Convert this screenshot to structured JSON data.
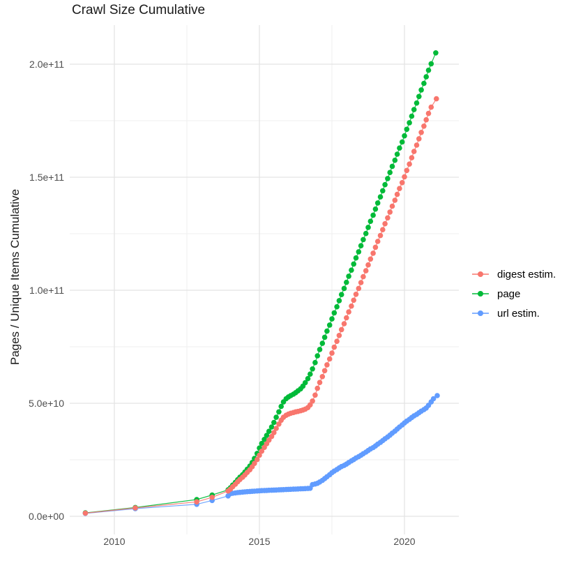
{
  "title": "Crawl Size Cumulative",
  "chart_data": {
    "type": "scatter",
    "title": "Crawl Size Cumulative",
    "xlabel": "",
    "ylabel": "Pages / Unique Items Cumulative",
    "value_unit": "1e9 (billions of pages / unique items)",
    "x_axis": {
      "ticks": [
        2010,
        2015,
        2020
      ],
      "tick_labels": [
        "2010",
        "2015",
        "2020"
      ],
      "minor_ticks": [
        2012.5,
        2017.5
      ],
      "range": [
        2008.45,
        2021.9
      ]
    },
    "y_axis": {
      "ticks_e9": [
        0,
        50,
        100,
        150,
        200
      ],
      "tick_labels": [
        "0.0e+00",
        "5.0e+10",
        "1.0e+11",
        "1.5e+11",
        "2.0e+11"
      ],
      "minor_ticks_e9": [
        25,
        75,
        125,
        175
      ],
      "range_e9": [
        -8,
        217
      ]
    },
    "layout": {
      "grid": true,
      "grid_major_color": "#e3e3e3",
      "grid_minor_color": "#efefef",
      "background": "#ffffff",
      "legend_position": "right"
    },
    "series": [
      {
        "name": "digest estim.",
        "color": "#F8766D",
        "points": [
          [
            2009.0,
            1.4
          ],
          [
            2010.72,
            3.7
          ],
          [
            2012.84,
            6.4
          ],
          [
            2013.37,
            8.4
          ],
          [
            2013.92,
            11.2
          ],
          [
            2014.0,
            12.0
          ],
          [
            2014.08,
            13.1
          ],
          [
            2014.17,
            14.2
          ],
          [
            2014.25,
            15.3
          ],
          [
            2014.33,
            16.3
          ],
          [
            2014.42,
            17.3
          ],
          [
            2014.5,
            18.3
          ],
          [
            2014.58,
            19.4
          ],
          [
            2014.67,
            20.6
          ],
          [
            2014.75,
            21.9
          ],
          [
            2014.83,
            23.4
          ],
          [
            2014.92,
            25.1
          ],
          [
            2015.0,
            27.0
          ],
          [
            2015.08,
            28.8
          ],
          [
            2015.17,
            30.5
          ],
          [
            2015.25,
            32.1
          ],
          [
            2015.33,
            33.7
          ],
          [
            2015.42,
            35.3
          ],
          [
            2015.5,
            37.0
          ],
          [
            2015.58,
            38.9
          ],
          [
            2015.67,
            40.8
          ],
          [
            2015.75,
            42.5
          ],
          [
            2015.83,
            43.8
          ],
          [
            2015.92,
            44.7
          ],
          [
            2016.0,
            45.2
          ],
          [
            2016.08,
            45.6
          ],
          [
            2016.17,
            45.9
          ],
          [
            2016.25,
            46.2
          ],
          [
            2016.33,
            46.4
          ],
          [
            2016.42,
            46.7
          ],
          [
            2016.5,
            47.0
          ],
          [
            2016.58,
            47.4
          ],
          [
            2016.67,
            48.1
          ],
          [
            2016.75,
            49.3
          ],
          [
            2016.83,
            51.0
          ],
          [
            2016.92,
            53.6
          ],
          [
            2017.0,
            56.6
          ],
          [
            2017.08,
            59.2
          ],
          [
            2017.17,
            61.8
          ],
          [
            2017.25,
            64.4
          ],
          [
            2017.33,
            67.0
          ],
          [
            2017.42,
            69.6
          ],
          [
            2017.5,
            72.2
          ],
          [
            2017.58,
            74.8
          ],
          [
            2017.67,
            77.4
          ],
          [
            2017.75,
            80.0
          ],
          [
            2017.83,
            82.6
          ],
          [
            2017.92,
            85.2
          ],
          [
            2018.0,
            87.8
          ],
          [
            2018.08,
            90.4
          ],
          [
            2018.17,
            93.0
          ],
          [
            2018.25,
            95.6
          ],
          [
            2018.33,
            98.2
          ],
          [
            2018.42,
            100.8
          ],
          [
            2018.5,
            103.4
          ],
          [
            2018.58,
            106.0
          ],
          [
            2018.67,
            108.6
          ],
          [
            2018.75,
            111.2
          ],
          [
            2018.83,
            113.8
          ],
          [
            2018.92,
            116.4
          ],
          [
            2019.0,
            119.0
          ],
          [
            2019.08,
            121.6
          ],
          [
            2019.17,
            124.2
          ],
          [
            2019.25,
            126.8
          ],
          [
            2019.33,
            129.4
          ],
          [
            2019.42,
            132.0
          ],
          [
            2019.5,
            134.6
          ],
          [
            2019.58,
            137.2
          ],
          [
            2019.67,
            139.8
          ],
          [
            2019.75,
            142.4
          ],
          [
            2019.83,
            145.0
          ],
          [
            2019.92,
            147.6
          ],
          [
            2020.0,
            150.2
          ],
          [
            2020.08,
            153.0
          ],
          [
            2020.17,
            155.8
          ],
          [
            2020.25,
            158.6
          ],
          [
            2020.33,
            161.4
          ],
          [
            2020.42,
            164.2
          ],
          [
            2020.5,
            167.0
          ],
          [
            2020.58,
            169.8
          ],
          [
            2020.67,
            172.6
          ],
          [
            2020.75,
            175.4
          ],
          [
            2020.83,
            178.2
          ],
          [
            2020.92,
            181.0
          ],
          [
            2021.1,
            184.7
          ]
        ]
      },
      {
        "name": "page",
        "color": "#00BA38",
        "points": [
          [
            2009.0,
            1.5
          ],
          [
            2010.72,
            3.9
          ],
          [
            2012.84,
            7.4
          ],
          [
            2013.37,
            9.4
          ],
          [
            2013.92,
            11.7
          ],
          [
            2014.0,
            12.6
          ],
          [
            2014.08,
            13.8
          ],
          [
            2014.17,
            15.0
          ],
          [
            2014.25,
            16.2
          ],
          [
            2014.33,
            17.3
          ],
          [
            2014.42,
            18.4
          ],
          [
            2014.5,
            19.6
          ],
          [
            2014.58,
            20.8
          ],
          [
            2014.67,
            22.2
          ],
          [
            2014.75,
            23.8
          ],
          [
            2014.83,
            25.6
          ],
          [
            2014.92,
            27.8
          ],
          [
            2015.0,
            30.2
          ],
          [
            2015.08,
            32.2
          ],
          [
            2015.17,
            34.0
          ],
          [
            2015.25,
            35.8
          ],
          [
            2015.33,
            37.6
          ],
          [
            2015.42,
            39.5
          ],
          [
            2015.5,
            41.5
          ],
          [
            2015.58,
            43.8
          ],
          [
            2015.67,
            46.2
          ],
          [
            2015.75,
            48.6
          ],
          [
            2015.83,
            50.6
          ],
          [
            2015.92,
            52.0
          ],
          [
            2016.0,
            52.8
          ],
          [
            2016.08,
            53.4
          ],
          [
            2016.17,
            54.0
          ],
          [
            2016.25,
            54.7
          ],
          [
            2016.33,
            55.5
          ],
          [
            2016.42,
            56.4
          ],
          [
            2016.5,
            57.6
          ],
          [
            2016.58,
            59.1
          ],
          [
            2016.67,
            60.9
          ],
          [
            2016.75,
            62.9
          ],
          [
            2016.83,
            65.2
          ],
          [
            2016.92,
            68.0
          ],
          [
            2017.0,
            71.0
          ],
          [
            2017.08,
            73.8
          ],
          [
            2017.17,
            76.5
          ],
          [
            2017.25,
            79.2
          ],
          [
            2017.33,
            81.9
          ],
          [
            2017.42,
            84.6
          ],
          [
            2017.5,
            87.3
          ],
          [
            2017.58,
            90.0
          ],
          [
            2017.67,
            92.7
          ],
          [
            2017.75,
            95.4
          ],
          [
            2017.83,
            98.1
          ],
          [
            2017.92,
            100.8
          ],
          [
            2018.0,
            103.5
          ],
          [
            2018.08,
            106.2
          ],
          [
            2018.17,
            108.9
          ],
          [
            2018.25,
            111.6
          ],
          [
            2018.33,
            114.3
          ],
          [
            2018.42,
            117.0
          ],
          [
            2018.5,
            119.7
          ],
          [
            2018.58,
            122.4
          ],
          [
            2018.67,
            125.1
          ],
          [
            2018.75,
            127.8
          ],
          [
            2018.83,
            130.5
          ],
          [
            2018.92,
            133.2
          ],
          [
            2019.0,
            135.9
          ],
          [
            2019.08,
            138.6
          ],
          [
            2019.17,
            141.3
          ],
          [
            2019.25,
            144.0
          ],
          [
            2019.33,
            146.7
          ],
          [
            2019.42,
            149.4
          ],
          [
            2019.5,
            152.1
          ],
          [
            2019.58,
            154.8
          ],
          [
            2019.67,
            157.5
          ],
          [
            2019.75,
            160.2
          ],
          [
            2019.83,
            162.9
          ],
          [
            2019.92,
            165.6
          ],
          [
            2020.0,
            168.3
          ],
          [
            2020.08,
            171.2
          ],
          [
            2020.17,
            174.1
          ],
          [
            2020.25,
            177.0
          ],
          [
            2020.33,
            179.9
          ],
          [
            2020.42,
            182.8
          ],
          [
            2020.5,
            185.7
          ],
          [
            2020.58,
            188.6
          ],
          [
            2020.67,
            191.5
          ],
          [
            2020.75,
            194.4
          ],
          [
            2020.83,
            197.3
          ],
          [
            2020.92,
            200.2
          ],
          [
            2021.08,
            205.0
          ]
        ]
      },
      {
        "name": "url estim.",
        "color": "#619CFF",
        "points": [
          [
            2009.0,
            1.3
          ],
          [
            2010.72,
            3.4
          ],
          [
            2012.84,
            5.3
          ],
          [
            2013.37,
            7.0
          ],
          [
            2013.92,
            9.0
          ],
          [
            2014.0,
            10.0
          ],
          [
            2014.08,
            10.2
          ],
          [
            2014.17,
            10.35
          ],
          [
            2014.25,
            10.5
          ],
          [
            2014.33,
            10.6
          ],
          [
            2014.42,
            10.7
          ],
          [
            2014.5,
            10.8
          ],
          [
            2014.58,
            10.9
          ],
          [
            2014.67,
            11.0
          ],
          [
            2014.75,
            11.05
          ],
          [
            2014.83,
            11.1
          ],
          [
            2014.92,
            11.2
          ],
          [
            2015.0,
            11.3
          ],
          [
            2015.08,
            11.35
          ],
          [
            2015.17,
            11.4
          ],
          [
            2015.25,
            11.45
          ],
          [
            2015.33,
            11.5
          ],
          [
            2015.42,
            11.55
          ],
          [
            2015.5,
            11.6
          ],
          [
            2015.58,
            11.65
          ],
          [
            2015.67,
            11.7
          ],
          [
            2015.75,
            11.75
          ],
          [
            2015.83,
            11.8
          ],
          [
            2015.92,
            11.85
          ],
          [
            2016.0,
            11.9
          ],
          [
            2016.08,
            11.95
          ],
          [
            2016.17,
            12.0
          ],
          [
            2016.25,
            12.05
          ],
          [
            2016.33,
            12.1
          ],
          [
            2016.42,
            12.15
          ],
          [
            2016.5,
            12.2
          ],
          [
            2016.58,
            12.25
          ],
          [
            2016.67,
            12.3
          ],
          [
            2016.75,
            12.4
          ],
          [
            2016.83,
            14.0
          ],
          [
            2016.92,
            14.3
          ],
          [
            2017.0,
            14.6
          ],
          [
            2017.08,
            15.2
          ],
          [
            2017.17,
            15.9
          ],
          [
            2017.25,
            16.7
          ],
          [
            2017.33,
            17.5
          ],
          [
            2017.42,
            18.4
          ],
          [
            2017.5,
            19.3
          ],
          [
            2017.58,
            20.0
          ],
          [
            2017.67,
            20.7
          ],
          [
            2017.75,
            21.4
          ],
          [
            2017.83,
            22.0
          ],
          [
            2017.92,
            22.5
          ],
          [
            2018.0,
            23.1
          ],
          [
            2018.08,
            23.8
          ],
          [
            2018.17,
            24.5
          ],
          [
            2018.25,
            25.1
          ],
          [
            2018.33,
            25.8
          ],
          [
            2018.42,
            26.4
          ],
          [
            2018.5,
            27.0
          ],
          [
            2018.58,
            27.7
          ],
          [
            2018.67,
            28.4
          ],
          [
            2018.75,
            29.1
          ],
          [
            2018.83,
            29.8
          ],
          [
            2018.92,
            30.4
          ],
          [
            2019.0,
            31.1
          ],
          [
            2019.08,
            31.9
          ],
          [
            2019.17,
            32.7
          ],
          [
            2019.25,
            33.5
          ],
          [
            2019.33,
            34.3
          ],
          [
            2019.42,
            35.1
          ],
          [
            2019.5,
            35.9
          ],
          [
            2019.58,
            36.8
          ],
          [
            2019.67,
            37.7
          ],
          [
            2019.75,
            38.6
          ],
          [
            2019.83,
            39.5
          ],
          [
            2019.92,
            40.4
          ],
          [
            2020.0,
            41.3
          ],
          [
            2020.08,
            42.1
          ],
          [
            2020.17,
            42.9
          ],
          [
            2020.25,
            43.7
          ],
          [
            2020.33,
            44.4
          ],
          [
            2020.42,
            45.1
          ],
          [
            2020.5,
            45.8
          ],
          [
            2020.58,
            46.5
          ],
          [
            2020.67,
            47.2
          ],
          [
            2020.75,
            47.9
          ],
          [
            2020.83,
            49.1
          ],
          [
            2020.92,
            50.6
          ],
          [
            2021.0,
            52.0
          ],
          [
            2021.13,
            53.4
          ]
        ]
      }
    ]
  }
}
